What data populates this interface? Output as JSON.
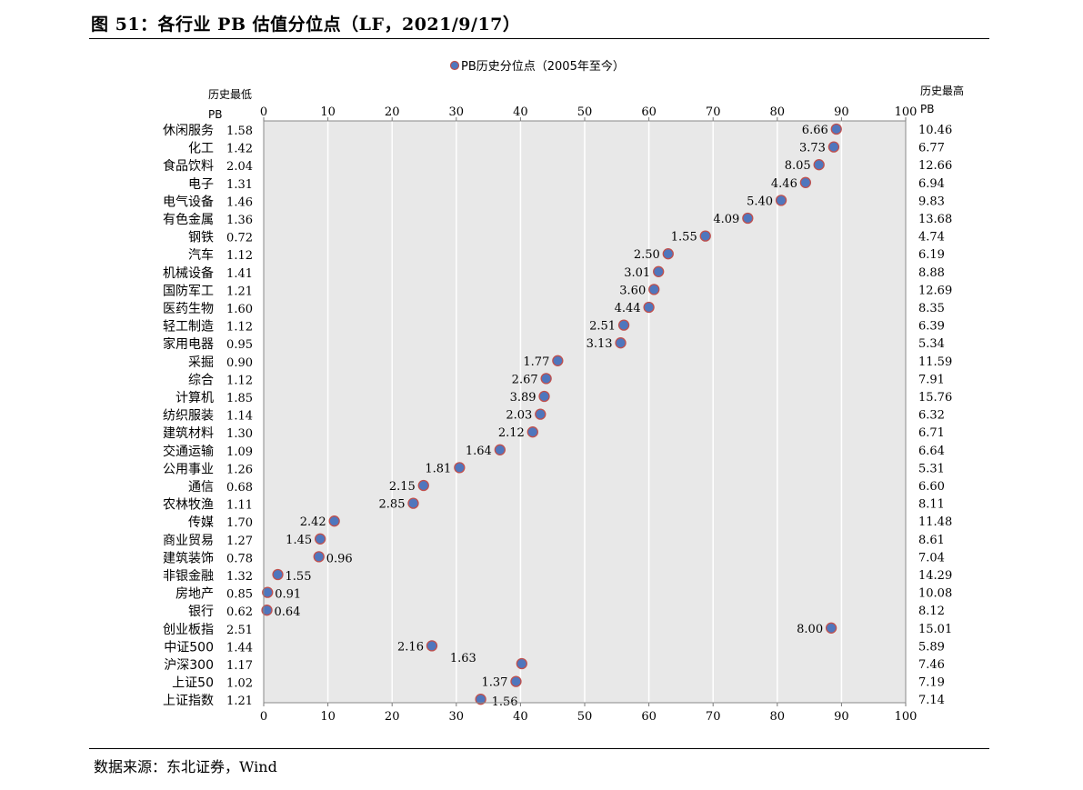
{
  "header": {
    "title": "图 51：各行业 PB 估值分位点（LF，2021/9/17）"
  },
  "footer": {
    "source": "数据来源：东北证券，Wind"
  },
  "chart_data": {
    "type": "scatter",
    "legend": {
      "label": "PB历史分位点（2005年至今）",
      "placement": "top-center"
    },
    "left_header": [
      "历史最低",
      "PB"
    ],
    "right_header": [
      "历史最高",
      "PB"
    ],
    "xlim": [
      0,
      100
    ],
    "xticks": [
      0,
      10,
      20,
      30,
      40,
      50,
      60,
      70,
      80,
      90,
      100
    ],
    "grid": true,
    "colors": {
      "marker_fill": "#4f76bd",
      "marker_edge": "#c0504d",
      "plot_bg": "#e8e8e8",
      "grid": "#ffffff"
    },
    "rows": [
      {
        "name": "休闲服务",
        "min_pb": "1.58",
        "max_pb": "10.46",
        "percentile": 89.2,
        "current_pb": "6.66",
        "label_side": "left"
      },
      {
        "name": "化工",
        "min_pb": "1.42",
        "max_pb": "6.77",
        "percentile": 88.8,
        "current_pb": "3.73",
        "label_side": "left"
      },
      {
        "name": "食品饮料",
        "min_pb": "2.04",
        "max_pb": "12.66",
        "percentile": 86.5,
        "current_pb": "8.05",
        "label_side": "left"
      },
      {
        "name": "电子",
        "min_pb": "1.31",
        "max_pb": "6.94",
        "percentile": 84.4,
        "current_pb": "4.46",
        "label_side": "left"
      },
      {
        "name": "电气设备",
        "min_pb": "1.46",
        "max_pb": "9.83",
        "percentile": 80.6,
        "current_pb": "5.40",
        "label_side": "left"
      },
      {
        "name": "有色金属",
        "min_pb": "1.36",
        "max_pb": "13.68",
        "percentile": 75.4,
        "current_pb": "4.09",
        "label_side": "left"
      },
      {
        "name": "钢铁",
        "min_pb": "0.72",
        "max_pb": "4.74",
        "percentile": 68.8,
        "current_pb": "1.55",
        "label_side": "left"
      },
      {
        "name": "汽车",
        "min_pb": "1.12",
        "max_pb": "6.19",
        "percentile": 63.0,
        "current_pb": "2.50",
        "label_side": "left"
      },
      {
        "name": "机械设备",
        "min_pb": "1.41",
        "max_pb": "8.88",
        "percentile": 61.5,
        "current_pb": "3.01",
        "label_side": "left"
      },
      {
        "name": "国防军工",
        "min_pb": "1.21",
        "max_pb": "12.69",
        "percentile": 60.8,
        "current_pb": "3.60",
        "label_side": "left"
      },
      {
        "name": "医药生物",
        "min_pb": "1.60",
        "max_pb": "8.35",
        "percentile": 60.0,
        "current_pb": "4.44",
        "label_side": "left"
      },
      {
        "name": "轻工制造",
        "min_pb": "1.12",
        "max_pb": "6.39",
        "percentile": 56.1,
        "current_pb": "2.51",
        "label_side": "left"
      },
      {
        "name": "家用电器",
        "min_pb": "0.95",
        "max_pb": "5.34",
        "percentile": 55.6,
        "current_pb": "3.13",
        "label_side": "left"
      },
      {
        "name": "采掘",
        "min_pb": "0.90",
        "max_pb": "11.59",
        "percentile": 45.8,
        "current_pb": "1.77",
        "label_side": "left"
      },
      {
        "name": "综合",
        "min_pb": "1.12",
        "max_pb": "7.91",
        "percentile": 44.0,
        "current_pb": "2.67",
        "label_side": "left"
      },
      {
        "name": "计算机",
        "min_pb": "1.85",
        "max_pb": "15.76",
        "percentile": 43.7,
        "current_pb": "3.89",
        "label_side": "left"
      },
      {
        "name": "纺织服装",
        "min_pb": "1.14",
        "max_pb": "6.32",
        "percentile": 43.1,
        "current_pb": "2.03",
        "label_side": "left"
      },
      {
        "name": "建筑材料",
        "min_pb": "1.30",
        "max_pb": "6.71",
        "percentile": 41.9,
        "current_pb": "2.12",
        "label_side": "left"
      },
      {
        "name": "交通运输",
        "min_pb": "1.09",
        "max_pb": "6.64",
        "percentile": 36.8,
        "current_pb": "1.64",
        "label_side": "left"
      },
      {
        "name": "公用事业",
        "min_pb": "1.26",
        "max_pb": "5.31",
        "percentile": 30.5,
        "current_pb": "1.81",
        "label_side": "left"
      },
      {
        "name": "通信",
        "min_pb": "0.68",
        "max_pb": "6.60",
        "percentile": 24.9,
        "current_pb": "2.15",
        "label_side": "left"
      },
      {
        "name": "农林牧渔",
        "min_pb": "1.11",
        "max_pb": "8.11",
        "percentile": 23.3,
        "current_pb": "2.85",
        "label_side": "left"
      },
      {
        "name": "传媒",
        "min_pb": "1.70",
        "max_pb": "11.48",
        "percentile": 11.0,
        "current_pb": "2.42",
        "label_side": "left"
      },
      {
        "name": "商业贸易",
        "min_pb": "1.27",
        "max_pb": "8.61",
        "percentile": 8.8,
        "current_pb": "1.45",
        "label_side": "left"
      },
      {
        "name": "建筑装饰",
        "min_pb": "0.78",
        "max_pb": "7.04",
        "percentile": 8.6,
        "current_pb": "0.96",
        "label_side": "right"
      },
      {
        "name": "非银金融",
        "min_pb": "1.32",
        "max_pb": "14.29",
        "percentile": 2.2,
        "current_pb": "1.55",
        "label_side": "right"
      },
      {
        "name": "房地产",
        "min_pb": "0.85",
        "max_pb": "10.08",
        "percentile": 0.6,
        "current_pb": "0.91",
        "label_side": "right"
      },
      {
        "name": "银行",
        "min_pb": "0.62",
        "max_pb": "8.12",
        "percentile": 0.5,
        "current_pb": "0.64",
        "label_side": "right"
      },
      {
        "name": "创业板指",
        "min_pb": "2.51",
        "max_pb": "15.01",
        "percentile": 88.4,
        "current_pb": "8.00",
        "label_side": "left"
      },
      {
        "name": "中证500",
        "min_pb": "1.44",
        "max_pb": "5.89",
        "percentile": 26.2,
        "current_pb": "2.16",
        "label_side": "left"
      },
      {
        "name": "沪深300",
        "min_pb": "1.17",
        "max_pb": "7.46",
        "percentile": 40.2,
        "current_pb": "1.63",
        "label_side": "above-left"
      },
      {
        "name": "上证50",
        "min_pb": "1.02",
        "max_pb": "7.19",
        "percentile": 39.3,
        "current_pb": "1.37",
        "label_side": "left"
      },
      {
        "name": "上证指数",
        "min_pb": "1.21",
        "max_pb": "7.14",
        "percentile": 33.8,
        "current_pb": "1.56",
        "label_side": "below-right"
      }
    ]
  }
}
